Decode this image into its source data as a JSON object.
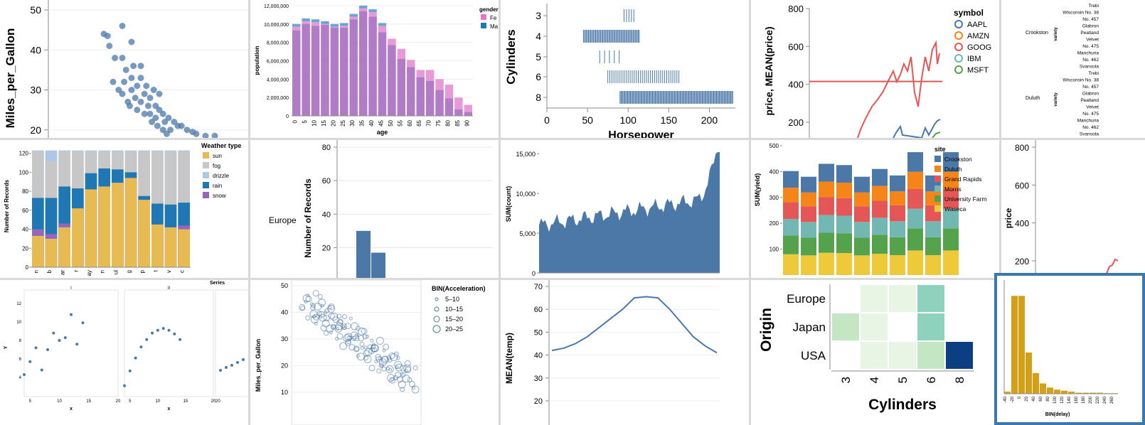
{
  "chart_data": [
    {
      "id": "c1",
      "type": "scatter",
      "ylabel": "Miles_per_Gallon",
      "ylim": [
        18,
        50
      ],
      "yticks": [
        20,
        30,
        40,
        50
      ],
      "points": [
        [
          0.3,
          44
        ],
        [
          0.32,
          43.5
        ],
        [
          0.33,
          41
        ],
        [
          0.4,
          46
        ],
        [
          0.45,
          42
        ],
        [
          0.4,
          38
        ],
        [
          0.42,
          35
        ],
        [
          0.45,
          33
        ],
        [
          0.5,
          36
        ],
        [
          0.48,
          31
        ],
        [
          0.52,
          29
        ],
        [
          0.55,
          28
        ],
        [
          0.5,
          27
        ],
        [
          0.58,
          26
        ],
        [
          0.6,
          25
        ],
        [
          0.62,
          24
        ],
        [
          0.55,
          24
        ],
        [
          0.65,
          23
        ],
        [
          0.68,
          22
        ],
        [
          0.7,
          21
        ],
        [
          0.72,
          21
        ],
        [
          0.75,
          20
        ],
        [
          0.78,
          19.5
        ],
        [
          0.45,
          30
        ],
        [
          0.47,
          28
        ],
        [
          0.53,
          31
        ],
        [
          0.57,
          30
        ],
        [
          0.6,
          29
        ],
        [
          0.43,
          27
        ],
        [
          0.63,
          22
        ],
        [
          0.66,
          20
        ],
        [
          0.8,
          19
        ],
        [
          0.85,
          18.5
        ],
        [
          0.9,
          18.5
        ],
        [
          0.35,
          32
        ],
        [
          0.38,
          30
        ],
        [
          0.52,
          24
        ],
        [
          0.56,
          22
        ],
        [
          0.59,
          21
        ],
        [
          0.62,
          20
        ],
        [
          0.48,
          25
        ],
        [
          0.44,
          26
        ],
        [
          0.4,
          29
        ],
        [
          0.5,
          33
        ],
        [
          0.46,
          36
        ],
        [
          0.36,
          38
        ],
        [
          0.41,
          32
        ],
        [
          0.54,
          26
        ],
        [
          0.58,
          23
        ],
        [
          0.64,
          19
        ]
      ]
    },
    {
      "id": "c2",
      "type": "bar",
      "ylabel": "population",
      "xlabel": "age",
      "yticks": [
        "0",
        "2,000,000",
        "4,000,000",
        "6,000,000",
        "8,000,000",
        "10,000,000",
        "12,000,000"
      ],
      "ymax": 12000000,
      "categories": [
        "0",
        "5",
        "10",
        "15",
        "20",
        "25",
        "30",
        "35",
        "40",
        "45",
        "50",
        "55",
        "60",
        "65",
        "70",
        "75",
        "80",
        "85",
        "90"
      ],
      "stacked": [
        [
          9700000,
          9300000
        ],
        [
          10300000,
          10000000
        ],
        [
          10200000,
          9800000
        ],
        [
          10000000,
          9900000
        ],
        [
          9700000,
          9600000
        ],
        [
          9800000,
          9600000
        ],
        [
          10800000,
          10500000
        ],
        [
          11700000,
          11400000
        ],
        [
          11300000,
          10800000
        ],
        [
          9800000,
          9100000
        ],
        [
          8400000,
          7700000
        ],
        [
          7300000,
          6200000
        ],
        [
          6100000,
          5300000
        ],
        [
          5000000,
          4200000
        ],
        [
          5000000,
          3800000
        ],
        [
          4000000,
          2800000
        ],
        [
          3400000,
          1900000
        ],
        [
          2000000,
          700000
        ],
        [
          1200000,
          400000
        ]
      ],
      "legend_title": "gender",
      "legend": [
        "Fe",
        "Ma"
      ]
    },
    {
      "id": "c3",
      "type": "strip",
      "ylabel": "Cylinders",
      "xlabel": "Horsepower",
      "xticks": [
        "0",
        "50",
        "100",
        "150",
        "200"
      ],
      "categories": [
        "3",
        "4",
        "5",
        "6",
        "8"
      ]
    },
    {
      "id": "c4",
      "type": "line",
      "ylabel": "price, MEAN(price)",
      "yticks": [
        "200",
        "400",
        "600",
        "800"
      ],
      "legend_title": "symbol",
      "legend": [
        "AAPL",
        "AMZN",
        "GOOG",
        "IBM",
        "MSFT"
      ]
    },
    {
      "id": "c5",
      "type": "text",
      "labels": [
        "Trebi",
        "Wisconsin No. 38",
        "No. 457",
        "Glabron",
        "Peatland",
        "Velvet",
        "No. 475",
        "Manchuria",
        "No. 462",
        "Svansota"
      ],
      "sites": [
        "Crookston",
        "Duluth"
      ],
      "axis": "variety"
    },
    {
      "id": "c6",
      "type": "bar",
      "ylabel": "Number of Records",
      "yticks": [
        "0",
        "20",
        "40",
        "60",
        "80",
        "100",
        "120"
      ],
      "legend_title": "Weather type",
      "legend": [
        "sun",
        "fog",
        "drizzle",
        "rain",
        "snow"
      ],
      "categories": [
        "n",
        "b",
        "ar",
        "r",
        "ay",
        "n",
        "ul",
        "g",
        "p",
        "t",
        "v",
        "c"
      ],
      "stacked": [
        [
          33,
          0,
          0,
          0,
          8
        ],
        [
          30,
          0,
          0,
          0,
          5
        ],
        [
          42,
          0,
          0,
          0,
          4
        ],
        [
          62,
          0,
          0,
          0,
          0
        ],
        [
          82,
          0,
          0,
          0,
          0
        ],
        [
          85,
          0,
          0,
          0,
          0
        ],
        [
          89,
          0,
          0,
          0,
          0
        ],
        [
          94,
          0,
          0,
          0,
          0
        ],
        [
          71,
          0,
          0,
          0,
          0
        ],
        [
          45,
          0,
          0,
          0,
          0
        ],
        [
          42,
          0,
          0,
          0,
          0
        ],
        [
          40,
          0,
          0,
          0,
          4
        ]
      ],
      "totals": [
        [
          40,
          73,
          124,
          123
        ],
        [
          35,
          73,
          114,
          123
        ],
        [
          46,
          85,
          124,
          123
        ],
        [
          62,
          83,
          124,
          123
        ],
        [
          82,
          99,
          124,
          123
        ],
        [
          85,
          104,
          124,
          123
        ],
        [
          89,
          103,
          124,
          123
        ],
        [
          94,
          100,
          124,
          123
        ],
        [
          71,
          75,
          124,
          123
        ],
        [
          45,
          67,
          124,
          123
        ],
        [
          42,
          66,
          124,
          123
        ],
        [
          44,
          68,
          124,
          123
        ]
      ]
    },
    {
      "id": "c7",
      "type": "bar",
      "ylabel": "Number of Records",
      "rowlabel": "Europe",
      "yticks": [
        "20",
        "40",
        "60",
        "80"
      ],
      "values": [
        30,
        17,
        1
      ]
    },
    {
      "id": "c8",
      "type": "area",
      "ylabel": "SUM(count)",
      "yticks": [
        "0",
        "5,000",
        "10,000",
        "15,000"
      ]
    },
    {
      "id": "c9",
      "type": "bar",
      "ylabel": "SUM(yield)",
      "yticks": [
        "100",
        "200",
        "300",
        "400",
        "500"
      ],
      "legend_title": "site",
      "legend": [
        "Crookston",
        "Duluth",
        "Grand Rapids",
        "Morris",
        "University Farm",
        "Waseca"
      ],
      "totals": [
        402,
        380,
        430,
        425,
        380,
        410,
        385,
        475,
        385,
        475
      ]
    },
    {
      "id": "c10",
      "type": "line",
      "ylabel": "price",
      "yticks": [
        "200",
        "400",
        "600",
        "800"
      ]
    },
    {
      "id": "c11",
      "type": "scatter",
      "title": "Series",
      "facets": [
        "I",
        "II"
      ],
      "xlabel": "x",
      "ylabel": "Y",
      "yticks": [
        "4",
        "6",
        "8",
        "10",
        "12"
      ],
      "xticks": [
        "5",
        "10",
        "15",
        "20"
      ],
      "series": [
        [
          [
            4,
            4.3
          ],
          [
            5,
            5.7
          ],
          [
            6,
            7.2
          ],
          [
            7,
            4.8
          ],
          [
            8,
            7
          ],
          [
            9,
            8.8
          ],
          [
            10,
            8
          ],
          [
            11,
            8.3
          ],
          [
            12,
            10.8
          ],
          [
            13,
            7.6
          ],
          [
            14,
            9.9
          ]
        ],
        [
          [
            4,
            3.1
          ],
          [
            5,
            4.7
          ],
          [
            6,
            6.1
          ],
          [
            7,
            7.3
          ],
          [
            8,
            8.1
          ],
          [
            9,
            8.8
          ],
          [
            10,
            9.1
          ],
          [
            11,
            9.3
          ],
          [
            12,
            9.1
          ],
          [
            13,
            8.7
          ],
          [
            14,
            8.1
          ]
        ]
      ]
    },
    {
      "id": "c12",
      "type": "scatter",
      "ylabel": "Miles_per_Gallon",
      "yticks": [
        "10",
        "20",
        "30",
        "40",
        "50"
      ],
      "legend_title": "BIN(Acceleration)",
      "legend": [
        "5–10",
        "10–15",
        "15–20",
        "20–25"
      ]
    },
    {
      "id": "c13",
      "type": "line",
      "ylabel": "MEAN(temp)",
      "yticks": [
        "20",
        "30",
        "40",
        "50",
        "60",
        "70"
      ],
      "values": [
        42,
        43,
        45,
        48,
        52,
        56,
        60,
        65,
        65.5,
        65,
        60,
        54,
        48,
        44,
        41
      ]
    },
    {
      "id": "c14",
      "type": "heatmap",
      "ylabel": "Origin",
      "xlabel": "Cylinders",
      "rows": [
        "Europe",
        "Japan",
        "USA"
      ],
      "cols": [
        "3",
        "4",
        "5",
        "6",
        "8"
      ],
      "cells": [
        [
          0,
          1,
          1,
          3,
          0
        ],
        [
          2,
          1,
          0,
          3,
          0
        ],
        [
          0,
          1,
          1,
          2,
          5
        ]
      ]
    },
    {
      "id": "c15",
      "type": "bar",
      "xlabel": "BIN(delay)",
      "xticks": [
        "-40",
        "-20",
        "0",
        "20",
        "40",
        "60",
        "80",
        "100",
        "120",
        "140",
        "160",
        "180",
        "200",
        "220",
        "240",
        "260"
      ],
      "values": [
        2,
        95,
        95,
        40,
        20,
        10,
        6,
        4,
        3,
        2,
        1,
        1,
        1,
        1,
        0.5,
        0.5
      ]
    }
  ],
  "colors": {
    "blue": "#4c78a8",
    "pink": "#e377c2",
    "purple": "#b07cc6",
    "sun": "#e7ba52",
    "fog": "#c7c7c7",
    "drizzle": "#aec7e8",
    "rain": "#1f77b4",
    "snow": "#9467bd",
    "orange": "#f58518",
    "red": "#e45756",
    "teal": "#72b7b2",
    "green": "#54a24b",
    "yellow": "#eeca3b",
    "gold": "#d4a017"
  }
}
